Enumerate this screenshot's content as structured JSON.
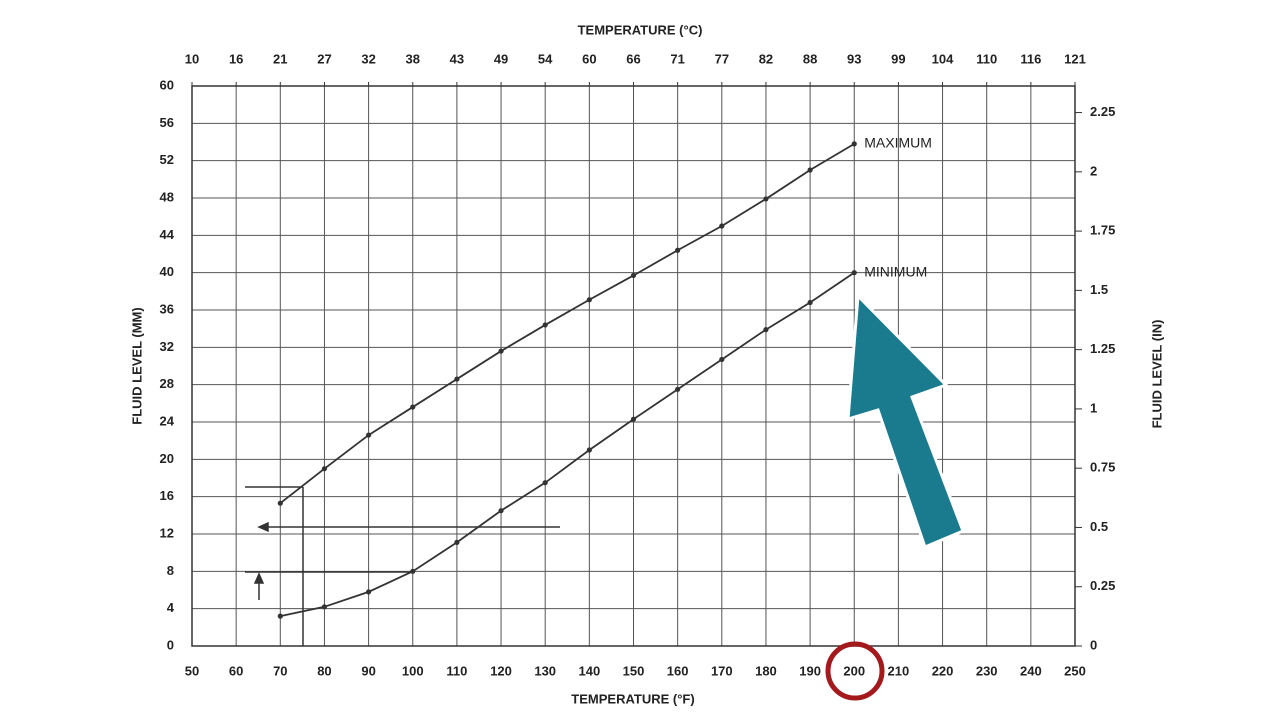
{
  "chart_data": {
    "type": "line",
    "x_label": "TEMPERATURE (°F)",
    "x2_label": "TEMPERATURE (°C)",
    "y_label": "FLUID LEVEL (MM)",
    "y2_label": "FLUID LEVEL (IN)",
    "x": [
      70,
      80,
      90,
      100,
      110,
      120,
      130,
      140,
      150,
      160,
      170,
      180,
      190,
      200
    ],
    "series": [
      {
        "name": "MAXIMUM",
        "color": "#333333",
        "values": [
          15.3,
          19,
          22.6,
          25.6,
          28.6,
          31.6,
          34.4,
          37.1,
          39.7,
          42.4,
          45,
          47.9,
          51,
          53.8
        ]
      },
      {
        "name": "MINIMUM",
        "color": "#333333",
        "values": [
          3.2,
          4.2,
          5.8,
          8,
          11.1,
          14.5,
          17.5,
          21,
          24.3,
          27.5,
          30.7,
          33.9,
          36.8,
          40
        ]
      }
    ],
    "xlim": [
      50,
      250
    ],
    "xticks": [
      50,
      60,
      70,
      80,
      90,
      100,
      110,
      120,
      130,
      140,
      150,
      160,
      170,
      180,
      190,
      200,
      210,
      220,
      230,
      240,
      250
    ],
    "x2lim": [
      10,
      121.11
    ],
    "x2ticks": [
      {
        "value": 10,
        "label": "10"
      },
      {
        "value": 15.56,
        "label": "16"
      },
      {
        "value": 21.11,
        "label": "21"
      },
      {
        "value": 26.67,
        "label": "27"
      },
      {
        "value": 32.22,
        "label": "32"
      },
      {
        "value": 37.78,
        "label": "38"
      },
      {
        "value": 43.33,
        "label": "43"
      },
      {
        "value": 48.89,
        "label": "49"
      },
      {
        "value": 54.44,
        "label": "54"
      },
      {
        "value": 60,
        "label": "60"
      },
      {
        "value": 65.56,
        "label": "66"
      },
      {
        "value": 71.11,
        "label": "71"
      },
      {
        "value": 76.67,
        "label": "77"
      },
      {
        "value": 82.22,
        "label": "82"
      },
      {
        "value": 87.78,
        "label": "88"
      },
      {
        "value": 93.33,
        "label": "93"
      },
      {
        "value": 98.89,
        "label": "99"
      },
      {
        "value": 104.44,
        "label": "104"
      },
      {
        "value": 110,
        "label": "110"
      },
      {
        "value": 115.56,
        "label": "116"
      },
      {
        "value": 121.11,
        "label": "121"
      }
    ],
    "ylim": [
      0,
      60
    ],
    "yticks": [
      0,
      4,
      8,
      12,
      16,
      20,
      24,
      28,
      32,
      36,
      40,
      44,
      48,
      52,
      56,
      60
    ],
    "y2lim": [
      0,
      2.362
    ],
    "y2ticks": [
      0,
      0.25,
      0.5,
      0.75,
      1,
      1.25,
      1.5,
      1.75,
      2,
      2.25
    ],
    "grid": true
  }
}
